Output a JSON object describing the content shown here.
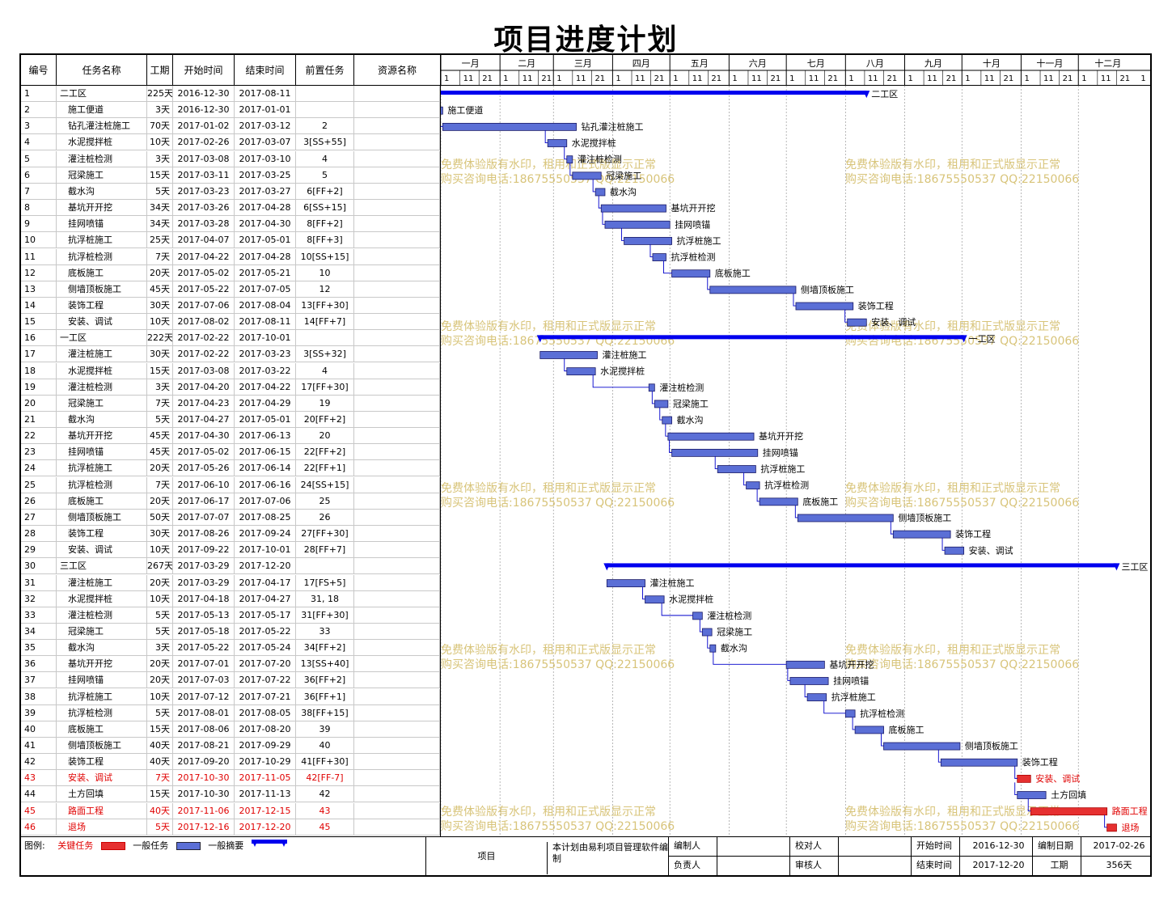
{
  "title": "项目进度计划",
  "columns": [
    "编号",
    "任务名称",
    "工期",
    "开始时间",
    "结束时间",
    "前置任务",
    "资源名称"
  ],
  "months": [
    "一月",
    "二月",
    "三月",
    "四月",
    "五月",
    "六月",
    "七月",
    "八月",
    "九月",
    "十月",
    "十一月",
    "十二月"
  ],
  "day_ticks": [
    "1",
    "11",
    "21"
  ],
  "watermark": [
    "免费体验版有水印，租用和正式版显示正常",
    "购买咨询电话:18675550537 QQ:22150066"
  ],
  "colors": {
    "normal": "#5b6fd6",
    "summary": "#0000ee",
    "critical": "#e63030",
    "link": "#0000cc"
  },
  "chart_data": {
    "type": "gantt",
    "project_start": "2016-12-30",
    "tasks": [
      {
        "id": "1",
        "name": "二工区",
        "dur": "225天",
        "start": "2016-12-30",
        "end": "2017-08-11",
        "pred": "",
        "kind": "summary"
      },
      {
        "id": "2",
        "name": "施工便道",
        "dur": "3天",
        "start": "2016-12-30",
        "end": "2017-01-01",
        "pred": "",
        "kind": "normal"
      },
      {
        "id": "3",
        "name": "钻孔灌注桩施工",
        "dur": "70天",
        "start": "2017-01-02",
        "end": "2017-03-12",
        "pred": "2",
        "kind": "normal"
      },
      {
        "id": "4",
        "name": "水泥搅拌桩",
        "dur": "10天",
        "start": "2017-02-26",
        "end": "2017-03-07",
        "pred": "3[SS+55]",
        "kind": "normal"
      },
      {
        "id": "5",
        "name": "灌注桩检测",
        "dur": "3天",
        "start": "2017-03-08",
        "end": "2017-03-10",
        "pred": "4",
        "kind": "normal"
      },
      {
        "id": "6",
        "name": "冠梁施工",
        "dur": "15天",
        "start": "2017-03-11",
        "end": "2017-03-25",
        "pred": "5",
        "kind": "normal"
      },
      {
        "id": "7",
        "name": "截水沟",
        "dur": "5天",
        "start": "2017-03-23",
        "end": "2017-03-27",
        "pred": "6[FF+2]",
        "kind": "normal"
      },
      {
        "id": "8",
        "name": "基坑开开挖",
        "dur": "34天",
        "start": "2017-03-26",
        "end": "2017-04-28",
        "pred": "6[SS+15]",
        "kind": "normal"
      },
      {
        "id": "9",
        "name": "挂网喷锚",
        "dur": "34天",
        "start": "2017-03-28",
        "end": "2017-04-30",
        "pred": "8[FF+2]",
        "kind": "normal"
      },
      {
        "id": "10",
        "name": "抗浮桩施工",
        "dur": "25天",
        "start": "2017-04-07",
        "end": "2017-05-01",
        "pred": "8[FF+3]",
        "kind": "normal"
      },
      {
        "id": "11",
        "name": "抗浮桩检测",
        "dur": "7天",
        "start": "2017-04-22",
        "end": "2017-04-28",
        "pred": "10[SS+15]",
        "kind": "normal"
      },
      {
        "id": "12",
        "name": "底板施工",
        "dur": "20天",
        "start": "2017-05-02",
        "end": "2017-05-21",
        "pred": "10",
        "kind": "normal"
      },
      {
        "id": "13",
        "name": "侧墙顶板施工",
        "dur": "45天",
        "start": "2017-05-22",
        "end": "2017-07-05",
        "pred": "12",
        "kind": "normal"
      },
      {
        "id": "14",
        "name": "装饰工程",
        "dur": "30天",
        "start": "2017-07-06",
        "end": "2017-08-04",
        "pred": "13[FF+30]",
        "kind": "normal"
      },
      {
        "id": "15",
        "name": "安装、调试",
        "dur": "10天",
        "start": "2017-08-02",
        "end": "2017-08-11",
        "pred": "14[FF+7]",
        "kind": "normal"
      },
      {
        "id": "16",
        "name": "一工区",
        "dur": "222天",
        "start": "2017-02-22",
        "end": "2017-10-01",
        "pred": "",
        "kind": "summary"
      },
      {
        "id": "17",
        "name": "灌注桩施工",
        "dur": "30天",
        "start": "2017-02-22",
        "end": "2017-03-23",
        "pred": "3[SS+32]",
        "kind": "normal"
      },
      {
        "id": "18",
        "name": "水泥搅拌桩",
        "dur": "15天",
        "start": "2017-03-08",
        "end": "2017-03-22",
        "pred": "4",
        "kind": "normal"
      },
      {
        "id": "19",
        "name": "灌注桩检测",
        "dur": "3天",
        "start": "2017-04-20",
        "end": "2017-04-22",
        "pred": "17[FF+30]",
        "kind": "normal"
      },
      {
        "id": "20",
        "name": "冠梁施工",
        "dur": "7天",
        "start": "2017-04-23",
        "end": "2017-04-29",
        "pred": "19",
        "kind": "normal"
      },
      {
        "id": "21",
        "name": "截水沟",
        "dur": "5天",
        "start": "2017-04-27",
        "end": "2017-05-01",
        "pred": "20[FF+2]",
        "kind": "normal"
      },
      {
        "id": "22",
        "name": "基坑开开挖",
        "dur": "45天",
        "start": "2017-04-30",
        "end": "2017-06-13",
        "pred": "20",
        "kind": "normal"
      },
      {
        "id": "23",
        "name": "挂网喷锚",
        "dur": "45天",
        "start": "2017-05-02",
        "end": "2017-06-15",
        "pred": "22[FF+2]",
        "kind": "normal"
      },
      {
        "id": "24",
        "name": "抗浮桩施工",
        "dur": "20天",
        "start": "2017-05-26",
        "end": "2017-06-14",
        "pred": "22[FF+1]",
        "kind": "normal"
      },
      {
        "id": "25",
        "name": "抗浮桩检测",
        "dur": "7天",
        "start": "2017-06-10",
        "end": "2017-06-16",
        "pred": "24[SS+15]",
        "kind": "normal"
      },
      {
        "id": "26",
        "name": "底板施工",
        "dur": "20天",
        "start": "2017-06-17",
        "end": "2017-07-06",
        "pred": "25",
        "kind": "normal"
      },
      {
        "id": "27",
        "name": "侧墙顶板施工",
        "dur": "50天",
        "start": "2017-07-07",
        "end": "2017-08-25",
        "pred": "26",
        "kind": "normal"
      },
      {
        "id": "28",
        "name": "装饰工程",
        "dur": "30天",
        "start": "2017-08-26",
        "end": "2017-09-24",
        "pred": "27[FF+30]",
        "kind": "normal"
      },
      {
        "id": "29",
        "name": "安装、调试",
        "dur": "10天",
        "start": "2017-09-22",
        "end": "2017-10-01",
        "pred": "28[FF+7]",
        "kind": "normal"
      },
      {
        "id": "30",
        "name": "三工区",
        "dur": "267天",
        "start": "2017-03-29",
        "end": "2017-12-20",
        "pred": "",
        "kind": "summary"
      },
      {
        "id": "31",
        "name": "灌注桩施工",
        "dur": "20天",
        "start": "2017-03-29",
        "end": "2017-04-17",
        "pred": "17[FS+5]",
        "kind": "normal"
      },
      {
        "id": "32",
        "name": "水泥搅拌桩",
        "dur": "10天",
        "start": "2017-04-18",
        "end": "2017-04-27",
        "pred": "31, 18",
        "kind": "normal"
      },
      {
        "id": "33",
        "name": "灌注桩检测",
        "dur": "5天",
        "start": "2017-05-13",
        "end": "2017-05-17",
        "pred": "31[FF+30]",
        "kind": "normal"
      },
      {
        "id": "34",
        "name": "冠梁施工",
        "dur": "5天",
        "start": "2017-05-18",
        "end": "2017-05-22",
        "pred": "33",
        "kind": "normal"
      },
      {
        "id": "35",
        "name": "截水沟",
        "dur": "3天",
        "start": "2017-05-22",
        "end": "2017-05-24",
        "pred": "34[FF+2]",
        "kind": "normal"
      },
      {
        "id": "36",
        "name": "基坑开开挖",
        "dur": "20天",
        "start": "2017-07-01",
        "end": "2017-07-20",
        "pred": "13[SS+40]",
        "kind": "normal"
      },
      {
        "id": "37",
        "name": "挂网喷锚",
        "dur": "20天",
        "start": "2017-07-03",
        "end": "2017-07-22",
        "pred": "36[FF+2]",
        "kind": "normal"
      },
      {
        "id": "38",
        "name": "抗浮桩施工",
        "dur": "10天",
        "start": "2017-07-12",
        "end": "2017-07-21",
        "pred": "36[FF+1]",
        "kind": "normal"
      },
      {
        "id": "39",
        "name": "抗浮桩检测",
        "dur": "5天",
        "start": "2017-08-01",
        "end": "2017-08-05",
        "pred": "38[FF+15]",
        "kind": "normal"
      },
      {
        "id": "40",
        "name": "底板施工",
        "dur": "15天",
        "start": "2017-08-06",
        "end": "2017-08-20",
        "pred": "39",
        "kind": "normal"
      },
      {
        "id": "41",
        "name": "侧墙顶板施工",
        "dur": "40天",
        "start": "2017-08-21",
        "end": "2017-09-29",
        "pred": "40",
        "kind": "normal"
      },
      {
        "id": "42",
        "name": "装饰工程",
        "dur": "40天",
        "start": "2017-09-20",
        "end": "2017-10-29",
        "pred": "41[FF+30]",
        "kind": "normal"
      },
      {
        "id": "43",
        "name": "安装、调试",
        "dur": "7天",
        "start": "2017-10-30",
        "end": "2017-11-05",
        "pred": "42[FF-7]",
        "kind": "critical"
      },
      {
        "id": "44",
        "name": "土方回填",
        "dur": "15天",
        "start": "2017-10-30",
        "end": "2017-11-13",
        "pred": "42",
        "kind": "normal"
      },
      {
        "id": "45",
        "name": "路面工程",
        "dur": "40天",
        "start": "2017-11-06",
        "end": "2017-12-15",
        "pred": "43",
        "kind": "critical"
      },
      {
        "id": "46",
        "name": "退场",
        "dur": "5天",
        "start": "2017-12-16",
        "end": "2017-12-20",
        "pred": "45",
        "kind": "critical"
      }
    ]
  },
  "legend": {
    "label": "图例:",
    "critical": "关键任务",
    "normal": "一般任务",
    "summary": "一般摘要"
  },
  "footer": {
    "project_label": "项目",
    "note": "本计划由易利项目管理软件编制",
    "editor_label": "编制人",
    "checker_label": "校对人",
    "owner_label": "负责人",
    "reviewer_label": "审核人",
    "start_label": "开始时间",
    "start_value": "2016-12-30",
    "date_label": "编制日期",
    "date_value": "2017-02-26",
    "end_label": "结束时间",
    "end_value": "2017-12-20",
    "dur_label": "工期",
    "dur_value": "356天"
  }
}
